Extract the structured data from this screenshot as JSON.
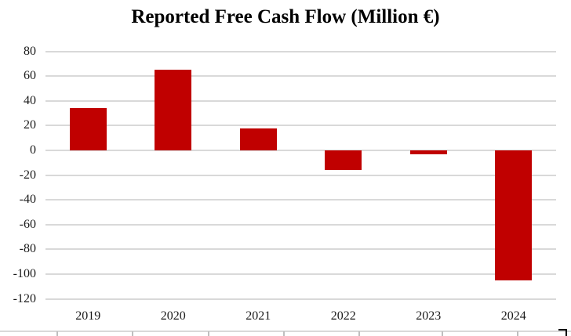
{
  "chart_data": {
    "type": "bar",
    "title": "Reported Free Cash Flow (Million €)",
    "categories": [
      "2019",
      "2020",
      "2021",
      "2022",
      "2023",
      "2024"
    ],
    "values": [
      34,
      65,
      18,
      -16,
      -3,
      -105
    ],
    "series_name": "Reported Free Cash Flow",
    "xlabel": "",
    "ylabel": "",
    "ylim": [
      -120,
      80
    ],
    "y_ticks": [
      80,
      60,
      40,
      20,
      0,
      -20,
      -40,
      -60,
      -80,
      -100,
      -120
    ],
    "grid": "horizontal-on",
    "legend": "none",
    "bar_color": "#c00000",
    "gridline_color": "#d9d9d9",
    "label_color": "#1a1a1a",
    "title_color": "#000000"
  }
}
